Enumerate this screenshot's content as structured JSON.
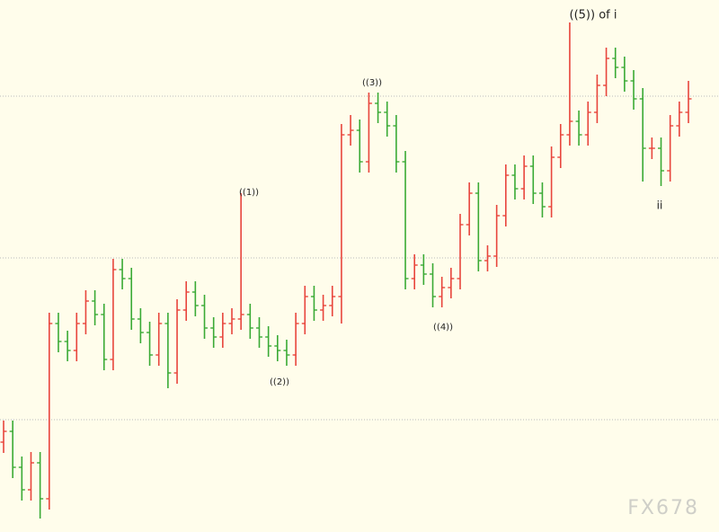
{
  "chart_data": {
    "type": "ohlc",
    "ylim": [
      0,
      592
    ],
    "yticks": [
      125,
      305,
      485
    ],
    "grid": true,
    "up_color": "#e8453c",
    "down_color": "#3aaa35",
    "ohlc": [
      [
        100,
        124,
        88,
        112
      ],
      [
        112,
        124,
        60,
        72
      ],
      [
        72,
        84,
        35,
        47
      ],
      [
        47,
        89,
        35,
        77
      ],
      [
        77,
        89,
        15,
        37
      ],
      [
        37,
        244,
        25,
        232
      ],
      [
        232,
        244,
        200,
        212
      ],
      [
        212,
        224,
        190,
        202
      ],
      [
        202,
        244,
        190,
        232
      ],
      [
        232,
        269,
        220,
        257
      ],
      [
        257,
        269,
        230,
        242
      ],
      [
        242,
        254,
        180,
        192
      ],
      [
        192,
        304,
        180,
        292
      ],
      [
        292,
        304,
        270,
        282
      ],
      [
        282,
        294,
        225,
        237
      ],
      [
        237,
        249,
        210,
        222
      ],
      [
        222,
        234,
        185,
        197
      ],
      [
        197,
        244,
        185,
        232
      ],
      [
        232,
        244,
        160,
        177
      ],
      [
        177,
        259,
        165,
        247
      ],
      [
        247,
        279,
        235,
        267
      ],
      [
        267,
        279,
        240,
        252
      ],
      [
        252,
        264,
        215,
        227
      ],
      [
        227,
        239,
        205,
        217
      ],
      [
        217,
        244,
        205,
        232
      ],
      [
        232,
        249,
        220,
        237
      ],
      [
        237,
        377,
        225,
        242
      ],
      [
        242,
        254,
        215,
        227
      ],
      [
        227,
        239,
        205,
        217
      ],
      [
        217,
        229,
        195,
        207
      ],
      [
        207,
        219,
        190,
        202
      ],
      [
        202,
        214,
        185,
        197
      ],
      [
        197,
        244,
        185,
        232
      ],
      [
        232,
        274,
        220,
        262
      ],
      [
        262,
        274,
        235,
        247
      ],
      [
        247,
        264,
        235,
        252
      ],
      [
        252,
        274,
        240,
        262
      ],
      [
        262,
        454,
        232,
        442
      ],
      [
        442,
        464,
        430,
        447
      ],
      [
        447,
        459,
        400,
        412
      ],
      [
        412,
        489,
        400,
        477
      ],
      [
        477,
        489,
        455,
        467
      ],
      [
        467,
        479,
        440,
        452
      ],
      [
        452,
        464,
        400,
        412
      ],
      [
        412,
        424,
        270,
        282
      ],
      [
        282,
        309,
        270,
        297
      ],
      [
        297,
        309,
        275,
        287
      ],
      [
        287,
        299,
        250,
        262
      ],
      [
        262,
        284,
        250,
        272
      ],
      [
        272,
        294,
        260,
        282
      ],
      [
        282,
        354,
        270,
        342
      ],
      [
        342,
        389,
        330,
        377
      ],
      [
        377,
        389,
        290,
        302
      ],
      [
        302,
        319,
        290,
        307
      ],
      [
        307,
        364,
        295,
        352
      ],
      [
        352,
        409,
        340,
        397
      ],
      [
        397,
        409,
        370,
        382
      ],
      [
        382,
        419,
        370,
        407
      ],
      [
        407,
        419,
        365,
        377
      ],
      [
        377,
        389,
        350,
        362
      ],
      [
        362,
        429,
        350,
        417
      ],
      [
        417,
        454,
        405,
        442
      ],
      [
        442,
        567,
        430,
        457
      ],
      [
        457,
        469,
        430,
        442
      ],
      [
        442,
        479,
        430,
        467
      ],
      [
        467,
        509,
        455,
        497
      ],
      [
        497,
        539,
        485,
        527
      ],
      [
        527,
        539,
        505,
        517
      ],
      [
        517,
        529,
        490,
        502
      ],
      [
        502,
        514,
        470,
        482
      ],
      [
        482,
        494,
        390,
        427
      ],
      [
        427,
        439,
        415,
        427
      ],
      [
        427,
        439,
        385,
        402
      ],
      [
        402,
        464,
        390,
        452
      ],
      [
        452,
        479,
        440,
        467
      ],
      [
        467,
        502,
        455,
        482
      ]
    ],
    "annotations": [
      "((1))",
      "((2))",
      "((3))",
      "((4))",
      "((5)) of i",
      "ii"
    ],
    "watermark": "FX678"
  }
}
